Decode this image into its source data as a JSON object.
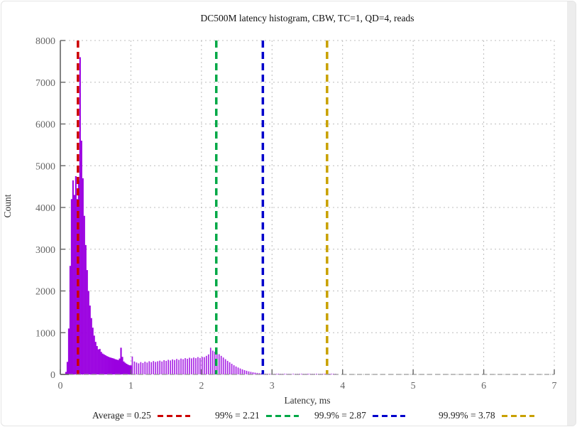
{
  "chart_data": {
    "type": "bar",
    "title": "DC500M latency histogram, CBW, TC=1, QD=4, reads",
    "xlabel": "Latency, ms",
    "ylabel": "Count",
    "xlim": [
      0,
      7
    ],
    "ylim": [
      0,
      8000
    ],
    "xticks": [
      0,
      1,
      2,
      3,
      4,
      5,
      6,
      7
    ],
    "yticks": [
      0,
      1000,
      2000,
      3000,
      4000,
      5000,
      6000,
      7000,
      8000
    ],
    "grid": true,
    "legend_position": "bottom",
    "bar_color": "#9a00e0",
    "markers": [
      {
        "label": "Average = 0.25",
        "value": 0.25,
        "color": "#cc0000"
      },
      {
        "label": "99% = 2.21",
        "value": 2.21,
        "color": "#00a846"
      },
      {
        "label": "99.9% = 2.87",
        "value": 2.87,
        "color": "#0000cc"
      },
      {
        "label": "99.99% = 3.78",
        "value": 3.78,
        "color": "#c8a000"
      }
    ],
    "bins": [
      [
        0.08,
        60
      ],
      [
        0.1,
        300
      ],
      [
        0.12,
        1100
      ],
      [
        0.14,
        2600
      ],
      [
        0.16,
        4200
      ],
      [
        0.18,
        4650
      ],
      [
        0.2,
        4300
      ],
      [
        0.22,
        4750
      ],
      [
        0.24,
        4200
      ],
      [
        0.26,
        4650
      ],
      [
        0.28,
        7600
      ],
      [
        0.3,
        5600
      ],
      [
        0.32,
        4700
      ],
      [
        0.34,
        3800
      ],
      [
        0.36,
        3100
      ],
      [
        0.38,
        2500
      ],
      [
        0.4,
        2000
      ],
      [
        0.42,
        1650
      ],
      [
        0.44,
        1350
      ],
      [
        0.46,
        1120
      ],
      [
        0.48,
        930
      ],
      [
        0.5,
        780
      ],
      [
        0.52,
        680
      ],
      [
        0.54,
        600
      ],
      [
        0.56,
        610
      ],
      [
        0.58,
        540
      ],
      [
        0.6,
        500
      ],
      [
        0.62,
        480
      ],
      [
        0.64,
        460
      ],
      [
        0.66,
        440
      ],
      [
        0.68,
        425
      ],
      [
        0.7,
        410
      ],
      [
        0.72,
        400
      ],
      [
        0.74,
        390
      ],
      [
        0.76,
        380
      ],
      [
        0.78,
        365
      ],
      [
        0.8,
        355
      ],
      [
        0.82,
        345
      ],
      [
        0.84,
        380
      ],
      [
        0.86,
        640
      ],
      [
        0.88,
        420
      ],
      [
        0.9,
        310
      ],
      [
        0.92,
        280
      ],
      [
        0.94,
        255
      ],
      [
        0.96,
        235
      ],
      [
        0.98,
        220
      ],
      [
        1.0,
        215
      ],
      [
        1.02,
        430
      ],
      [
        1.05,
        310
      ],
      [
        1.08,
        285
      ],
      [
        1.11,
        265
      ],
      [
        1.14,
        295
      ],
      [
        1.17,
        275
      ],
      [
        1.2,
        305
      ],
      [
        1.23,
        285
      ],
      [
        1.26,
        315
      ],
      [
        1.29,
        295
      ],
      [
        1.32,
        320
      ],
      [
        1.35,
        300
      ],
      [
        1.38,
        315
      ],
      [
        1.41,
        330
      ],
      [
        1.44,
        310
      ],
      [
        1.47,
        340
      ],
      [
        1.5,
        325
      ],
      [
        1.53,
        350
      ],
      [
        1.56,
        335
      ],
      [
        1.59,
        360
      ],
      [
        1.62,
        345
      ],
      [
        1.65,
        370
      ],
      [
        1.68,
        350
      ],
      [
        1.71,
        380
      ],
      [
        1.74,
        365
      ],
      [
        1.77,
        390
      ],
      [
        1.8,
        375
      ],
      [
        1.83,
        400
      ],
      [
        1.86,
        385
      ],
      [
        1.89,
        405
      ],
      [
        1.92,
        390
      ],
      [
        1.95,
        415
      ],
      [
        1.98,
        395
      ],
      [
        2.01,
        420
      ],
      [
        2.04,
        415
      ],
      [
        2.07,
        445
      ],
      [
        2.1,
        480
      ],
      [
        2.13,
        640
      ],
      [
        2.16,
        570
      ],
      [
        2.19,
        545
      ],
      [
        2.22,
        520
      ],
      [
        2.25,
        485
      ],
      [
        2.28,
        445
      ],
      [
        2.31,
        405
      ],
      [
        2.34,
        365
      ],
      [
        2.37,
        325
      ],
      [
        2.4,
        290
      ],
      [
        2.43,
        255
      ],
      [
        2.46,
        220
      ],
      [
        2.49,
        190
      ],
      [
        2.52,
        165
      ],
      [
        2.55,
        142
      ],
      [
        2.58,
        122
      ],
      [
        2.61,
        103
      ],
      [
        2.64,
        87
      ],
      [
        2.67,
        73
      ],
      [
        2.7,
        61
      ],
      [
        2.73,
        51
      ],
      [
        2.76,
        43
      ],
      [
        2.79,
        36
      ],
      [
        2.82,
        30
      ],
      [
        2.85,
        26
      ],
      [
        2.88,
        22
      ],
      [
        2.91,
        19
      ],
      [
        2.94,
        16
      ],
      [
        2.97,
        14
      ],
      [
        3.0,
        12
      ],
      [
        3.03,
        11
      ],
      [
        3.06,
        10
      ],
      [
        3.09,
        9
      ],
      [
        3.12,
        9
      ],
      [
        3.15,
        8
      ],
      [
        3.18,
        8
      ],
      [
        3.21,
        7
      ],
      [
        3.24,
        7
      ],
      [
        3.27,
        6
      ],
      [
        3.3,
        6
      ],
      [
        3.33,
        6
      ],
      [
        3.36,
        5
      ],
      [
        3.39,
        5
      ],
      [
        3.42,
        5
      ],
      [
        3.45,
        4
      ],
      [
        3.48,
        4
      ],
      [
        3.51,
        4
      ],
      [
        3.54,
        4
      ],
      [
        3.57,
        3
      ],
      [
        3.6,
        3
      ],
      [
        3.63,
        3
      ],
      [
        3.66,
        3
      ],
      [
        3.69,
        3
      ],
      [
        3.72,
        2
      ],
      [
        3.75,
        2
      ],
      [
        3.78,
        2
      ],
      [
        3.81,
        2
      ],
      [
        3.84,
        2
      ],
      [
        3.87,
        1
      ],
      [
        3.9,
        1
      ]
    ]
  },
  "page": {
    "grid_color": "#bcbcbc",
    "axis_color": "#666666",
    "tick_label_color": "#666666"
  }
}
